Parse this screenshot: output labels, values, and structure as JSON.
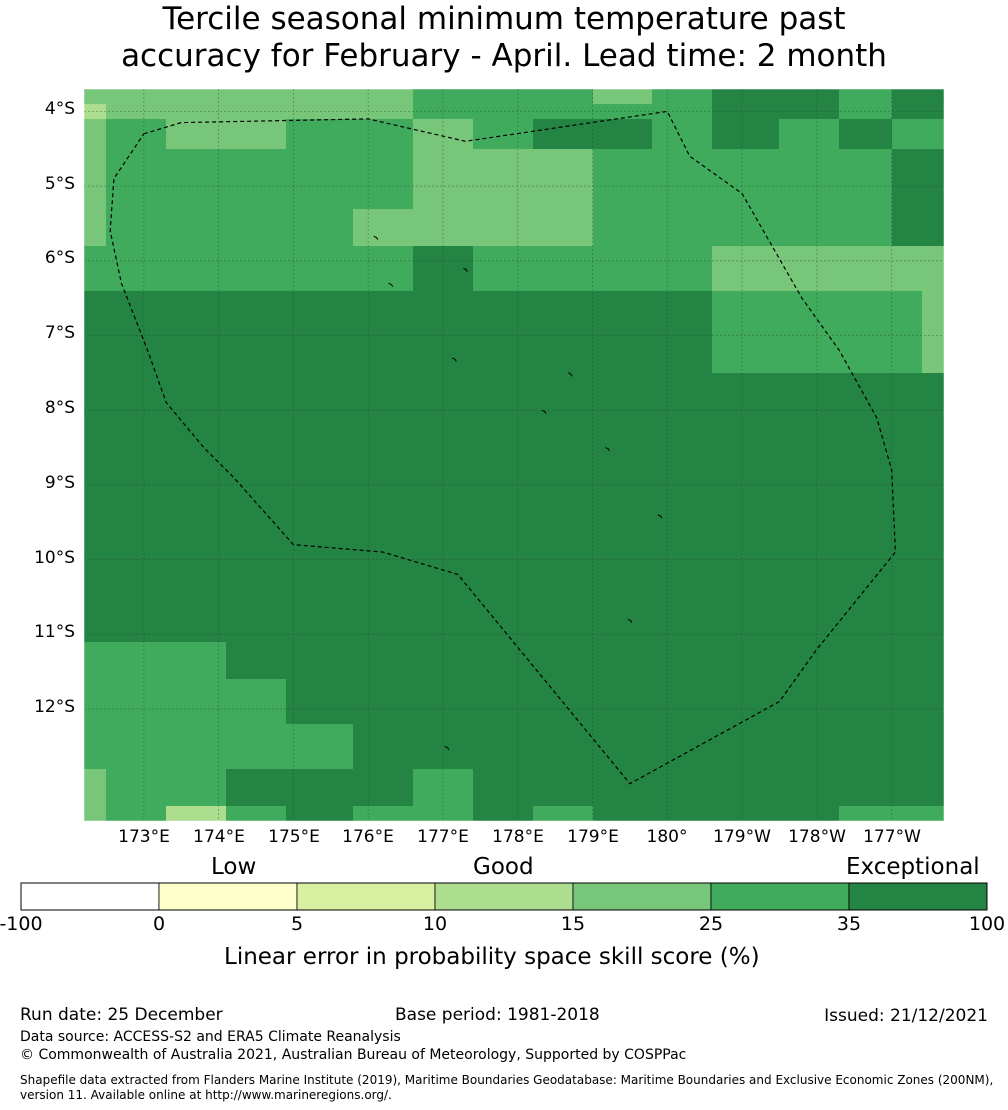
{
  "title": {
    "line1": "Tercile seasonal minimum temperature past",
    "line2": "accuracy for February - April. Lead time: 2 month"
  },
  "map": {
    "lat_labels": [
      "4°S",
      "5°S",
      "6°S",
      "7°S",
      "8°S",
      "9°S",
      "10°S",
      "11°S",
      "12°S"
    ],
    "lon_labels": [
      "173°E",
      "174°E",
      "175°E",
      "176°E",
      "177°E",
      "178°E",
      "179°E",
      "180°",
      "179°W",
      "178°W",
      "177°W"
    ],
    "lon_range": [
      172.2,
      183.7
    ],
    "lat_range": [
      -13.5,
      -3.7
    ],
    "level_colors": [
      "#ffffff",
      "#ffffcc",
      "#d9f0a3",
      "#addd8e",
      "#78c679",
      "#41ab5d",
      "#238443"
    ],
    "grid_lon_edges": [
      172.2,
      172.5,
      173.3,
      174.1,
      174.9,
      175.8,
      176.6,
      177.4,
      178.2,
      179.0,
      179.8,
      180.6,
      181.5,
      182.3,
      183.0,
      183.4,
      183.7
    ],
    "grid_lat_edges": [
      -3.7,
      -3.9,
      -4.1,
      -4.5,
      -5.3,
      -5.8,
      -6.4,
      -7.0,
      -7.5,
      -8.2,
      -9.3,
      -10.4,
      -11.1,
      -11.6,
      -12.2,
      -12.8,
      -13.3,
      -13.5
    ],
    "grid_levels": [
      [
        4,
        4,
        4,
        4,
        4,
        4,
        5,
        5,
        5,
        4,
        5,
        6,
        6,
        5,
        6,
        6
      ],
      [
        3,
        4,
        4,
        4,
        4,
        4,
        5,
        5,
        5,
        5,
        5,
        6,
        6,
        5,
        6,
        6
      ],
      [
        4,
        5,
        4,
        4,
        5,
        5,
        4,
        5,
        6,
        6,
        5,
        6,
        5,
        6,
        5,
        5
      ],
      [
        4,
        5,
        5,
        5,
        5,
        5,
        4,
        4,
        4,
        5,
        5,
        5,
        5,
        5,
        6,
        6
      ],
      [
        4,
        5,
        5,
        5,
        5,
        4,
        4,
        4,
        4,
        5,
        5,
        5,
        5,
        5,
        6,
        6
      ],
      [
        5,
        5,
        5,
        5,
        5,
        5,
        6,
        5,
        5,
        5,
        5,
        4,
        4,
        4,
        4,
        4
      ],
      [
        6,
        6,
        6,
        6,
        6,
        6,
        6,
        6,
        6,
        6,
        6,
        5,
        5,
        5,
        5,
        4
      ],
      [
        6,
        6,
        6,
        6,
        6,
        6,
        6,
        6,
        6,
        6,
        6,
        5,
        5,
        5,
        5,
        4
      ],
      [
        6,
        6,
        6,
        6,
        6,
        6,
        6,
        6,
        6,
        6,
        6,
        6,
        6,
        6,
        6,
        6
      ],
      [
        6,
        6,
        6,
        6,
        6,
        6,
        6,
        6,
        6,
        6,
        6,
        6,
        6,
        6,
        6,
        6
      ],
      [
        6,
        6,
        6,
        6,
        6,
        6,
        6,
        6,
        6,
        6,
        6,
        6,
        6,
        6,
        6,
        6
      ],
      [
        6,
        6,
        6,
        6,
        6,
        6,
        6,
        6,
        6,
        6,
        6,
        6,
        6,
        6,
        6,
        6
      ],
      [
        5,
        5,
        5,
        6,
        6,
        6,
        6,
        6,
        6,
        6,
        6,
        6,
        6,
        6,
        6,
        6
      ],
      [
        5,
        5,
        5,
        5,
        6,
        6,
        6,
        6,
        6,
        6,
        6,
        6,
        6,
        6,
        6,
        6
      ],
      [
        5,
        5,
        5,
        5,
        5,
        6,
        6,
        6,
        6,
        6,
        6,
        6,
        6,
        6,
        6,
        6
      ],
      [
        4,
        5,
        5,
        6,
        6,
        6,
        5,
        6,
        6,
        6,
        6,
        6,
        6,
        6,
        6,
        6
      ],
      [
        4,
        5,
        3,
        5,
        6,
        5,
        5,
        6,
        5,
        6,
        6,
        6,
        6,
        5,
        5,
        5
      ]
    ],
    "eez_boundary": [
      [
        173.0,
        -4.3
      ],
      [
        173.5,
        -4.15
      ],
      [
        176.0,
        -4.1
      ],
      [
        177.3,
        -4.4
      ],
      [
        180.0,
        -4.0
      ],
      [
        180.3,
        -4.6
      ],
      [
        181.0,
        -5.1
      ],
      [
        181.8,
        -6.5
      ],
      [
        182.3,
        -7.2
      ],
      [
        182.8,
        -8.1
      ],
      [
        183.0,
        -8.8
      ],
      [
        183.05,
        -9.9
      ],
      [
        182.0,
        -11.2
      ],
      [
        181.5,
        -11.9
      ],
      [
        179.5,
        -13.0
      ],
      [
        177.2,
        -10.2
      ],
      [
        176.2,
        -9.9
      ],
      [
        175.0,
        -9.8
      ],
      [
        174.2,
        -8.9
      ],
      [
        173.8,
        -8.5
      ],
      [
        173.3,
        -7.9
      ],
      [
        173.05,
        -7.2
      ],
      [
        172.7,
        -6.3
      ],
      [
        172.55,
        -5.6
      ],
      [
        172.6,
        -4.9
      ],
      [
        172.8,
        -4.6
      ],
      [
        173.0,
        -4.3
      ]
    ],
    "islands": [
      [
        176.1,
        -5.67
      ],
      [
        176.3,
        -6.3
      ],
      [
        177.3,
        -6.1
      ],
      [
        177.15,
        -7.3
      ],
      [
        178.7,
        -7.5
      ],
      [
        178.35,
        -8.0
      ],
      [
        179.2,
        -8.5
      ],
      [
        179.9,
        -9.4
      ],
      [
        179.5,
        -10.8
      ],
      [
        177.05,
        -12.5
      ]
    ]
  },
  "colorbar": {
    "categories": {
      "low": "Low",
      "good": "Good",
      "exceptional": "Exceptional"
    },
    "ticks": [
      "-100",
      "0",
      "5",
      "10",
      "15",
      "25",
      "35",
      "100"
    ],
    "title": "Linear error in probability space skill score (%)"
  },
  "footer": {
    "run_date": "Run date: 25 December",
    "base_period": "Base period: 1981-2018",
    "issued": "Issued: 21/12/2021",
    "data_source": "Data source: ACCESS-S2 and ERA5 Climate Reanalysis",
    "copyright": "© Commonwealth of Australia 2021, Australian Bureau of Meteorology, Supported by COSPPac",
    "shapefile_line1": "Shapefile data extracted from Flanders Marine Institute (2019), Maritime Boundaries Geodatabase: Maritime Boundaries and Exclusive Economic Zones (200NM),",
    "shapefile_line2": "version 11. Available online at http://www.marineregions.org/."
  }
}
